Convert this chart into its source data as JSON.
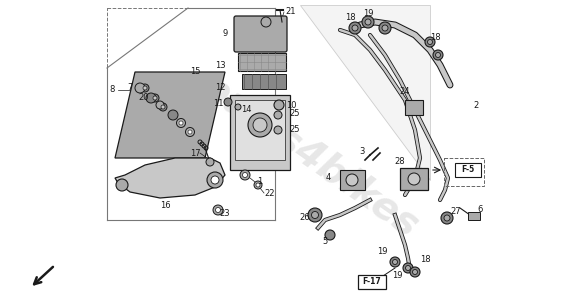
{
  "bg_color": "#ffffff",
  "line_color": "#1a1a1a",
  "part_gray": "#c8c8c8",
  "part_dark": "#888888",
  "part_mid": "#aaaaaa",
  "figsize": [
    5.79,
    2.98
  ],
  "dpi": 100,
  "watermark": "parts4bikes",
  "wm_color": "#d8d8d8"
}
